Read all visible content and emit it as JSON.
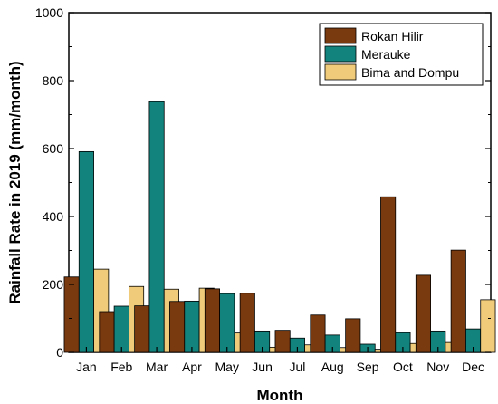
{
  "chart_data": {
    "type": "bar",
    "title": "",
    "xlabel": "Month",
    "ylabel": "Rainfall Rate in 2019 (mm/month)",
    "ylim": [
      0,
      1000
    ],
    "yticks": [
      0,
      200,
      400,
      600,
      800,
      1000
    ],
    "categories": [
      "Jan",
      "Feb",
      "Mar",
      "Apr",
      "May",
      "Jun",
      "Jul",
      "Aug",
      "Sep",
      "Oct",
      "Nov",
      "Dec"
    ],
    "series": [
      {
        "name": "Rokan Hilir",
        "color": "#7A3A0F",
        "values": [
          222,
          120,
          137,
          150,
          187,
          174,
          65,
          110,
          99,
          458,
          227,
          301
        ]
      },
      {
        "name": "Merauke",
        "color": "#12847D",
        "values": [
          591,
          136,
          738,
          151,
          173,
          63,
          42,
          51,
          24,
          58,
          63,
          69
        ]
      },
      {
        "name": "Bima and Dompu",
        "color": "#F0CB7A",
        "values": [
          245,
          194,
          186,
          189,
          57,
          15,
          22,
          14,
          9,
          26,
          29,
          155
        ]
      }
    ],
    "legend_position": "top-right",
    "grid": false
  }
}
